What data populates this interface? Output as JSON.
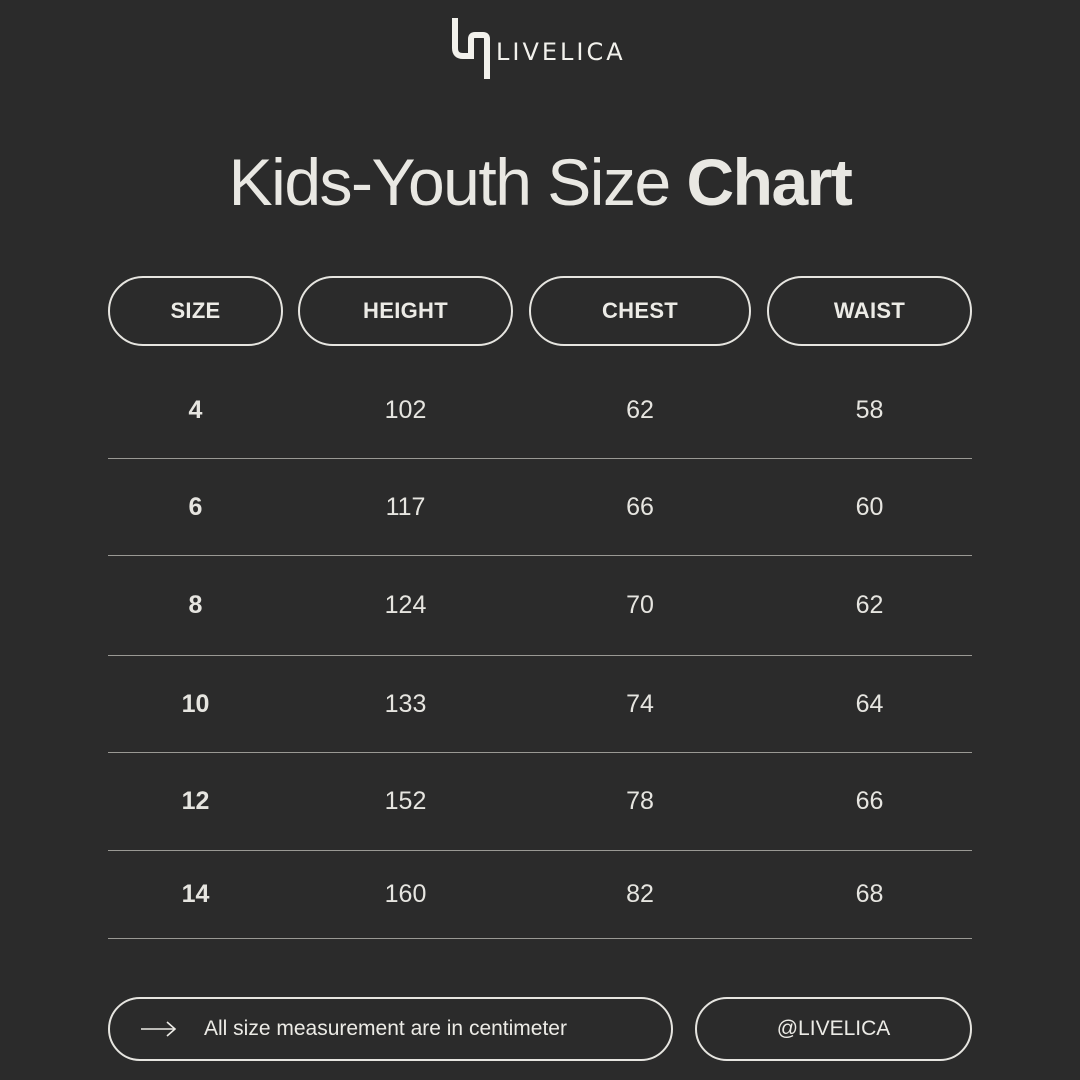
{
  "brand": {
    "name": "LIVELICA",
    "logo_icon": "livelica-logo-mark-icon"
  },
  "title": {
    "light": "Kids-Youth Size ",
    "bold": "Chart"
  },
  "table": {
    "headers": [
      "SIZE",
      "HEIGHT",
      "CHEST",
      "WAIST"
    ],
    "rows": [
      [
        "4",
        "102",
        "62",
        "58"
      ],
      [
        "6",
        "117",
        "66",
        "60"
      ],
      [
        "8",
        "124",
        "70",
        "62"
      ],
      [
        "10",
        "133",
        "74",
        "64"
      ],
      [
        "12",
        "152",
        "78",
        "66"
      ],
      [
        "14",
        "160",
        "82",
        "68"
      ]
    ]
  },
  "footer": {
    "note_icon": "arrow-right-icon",
    "note": "All size measurement are in centimeter",
    "handle": "@LIVELICA"
  },
  "colors": {
    "background": "#2b2b2b",
    "text": "#ecebe6",
    "divider": "#9a9994"
  }
}
